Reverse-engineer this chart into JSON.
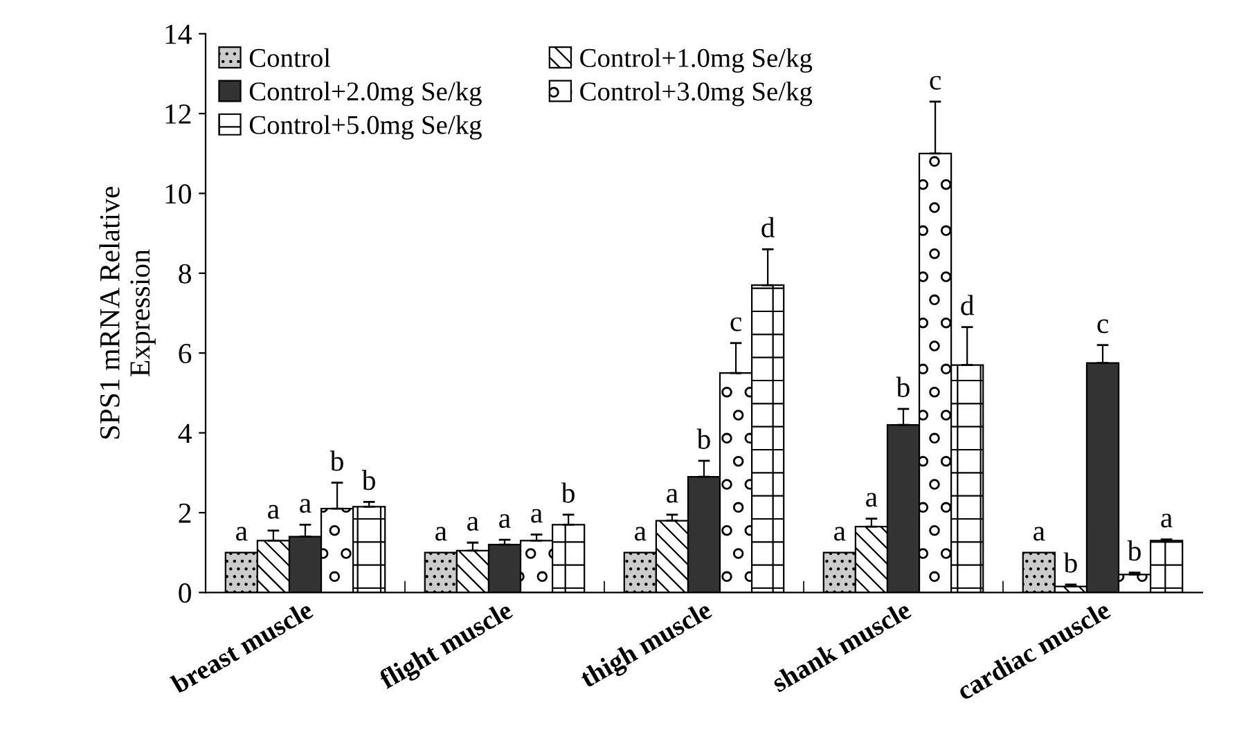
{
  "chart_data": {
    "type": "bar",
    "ylabel": "SPS1 mRNA Relative\nExpression",
    "categories": [
      "breast muscle",
      "flight muscle",
      "thigh muscle",
      "shank muscle",
      "cardiac muscle"
    ],
    "series": [
      {
        "name": "Control",
        "color": "#cccccc",
        "values": [
          1,
          1,
          1,
          1,
          1
        ],
        "value_labels": [
          "a",
          "a",
          "a",
          "a",
          "a"
        ]
      },
      {
        "name": "Control+1.0mg Se/kg",
        "color": "#ffffff",
        "values": [
          1.3,
          1.05,
          1.8,
          1.65,
          0.15
        ],
        "errors": [
          [
            1.3,
            1.55
          ],
          [
            1.05,
            1.25
          ],
          [
            1.8,
            1.95
          ],
          [
            1.65,
            1.85
          ],
          [
            0.15,
            0.2
          ]
        ],
        "value_labels": [
          "a",
          "a",
          "a",
          "a",
          "b"
        ]
      },
      {
        "name": "Control+2.0mg Se/kg",
        "color": "#333333",
        "values": [
          1.4,
          1.2,
          2.9,
          4.2,
          5.75
        ],
        "errors": [
          [
            1.4,
            1.7
          ],
          [
            1.2,
            1.32
          ],
          [
            2.9,
            3.3
          ],
          [
            4.2,
            4.6
          ],
          [
            5.75,
            6.2
          ]
        ],
        "value_labels": [
          "a",
          "a",
          "b",
          "b",
          "c"
        ]
      },
      {
        "name": "Control+3.0mg Se/kg",
        "color": "#ffffff",
        "values": [
          2.1,
          1.3,
          5.5,
          11.0,
          0.45
        ],
        "errors": [
          [
            2.1,
            2.75
          ],
          [
            1.3,
            1.45
          ],
          [
            5.5,
            6.25
          ],
          [
            11.0,
            12.3
          ],
          [
            0.45,
            0.5
          ]
        ],
        "value_labels": [
          "b",
          "a",
          "c",
          "c",
          "b"
        ]
      },
      {
        "name": "Control+5.0mg Se/kg",
        "color": "#ffffff",
        "values": [
          2.15,
          1.7,
          7.7,
          5.7,
          1.3
        ],
        "errors": [
          [
            2.15,
            2.27
          ],
          [
            1.7,
            1.95
          ],
          [
            7.7,
            8.6
          ],
          [
            5.7,
            6.65
          ],
          [
            1.3,
            1.33
          ]
        ],
        "value_labels": [
          "b",
          "b",
          "d",
          "d",
          "a"
        ]
      }
    ],
    "ylim": [
      0,
      14
    ],
    "yticks": [
      0,
      2,
      4,
      6,
      8,
      10,
      12,
      14
    ],
    "legend": "top left"
  }
}
